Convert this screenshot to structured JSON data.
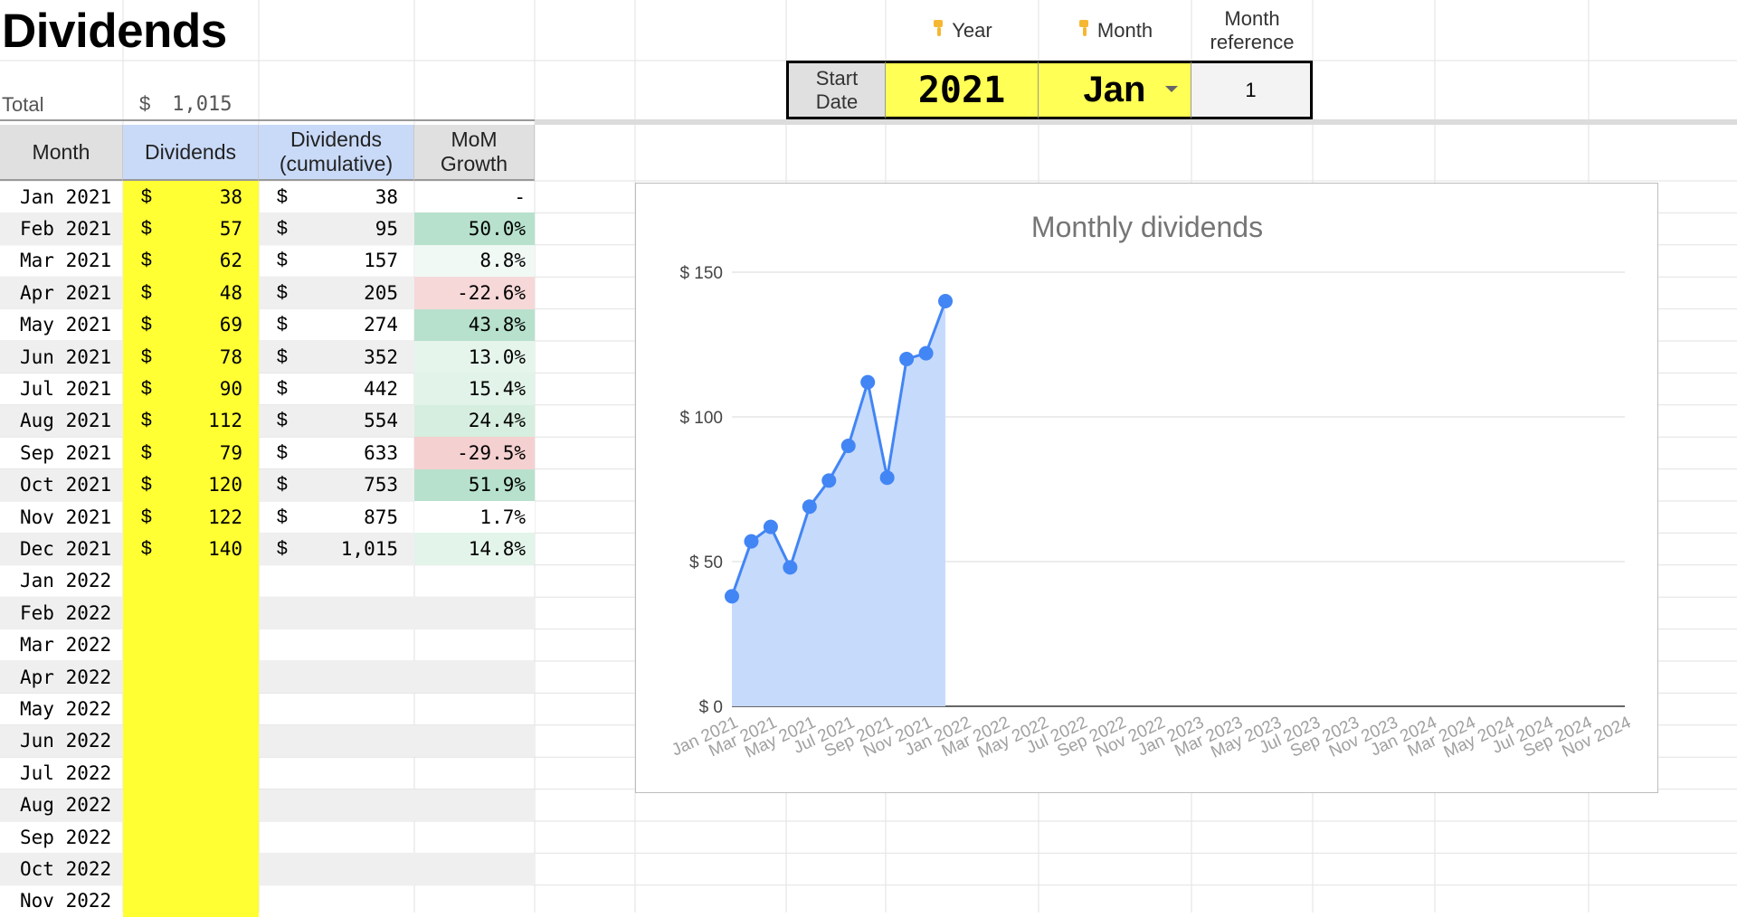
{
  "sheet": {
    "title": "Dividends",
    "total_label": "Total",
    "total_currency": "$",
    "total_value": "1,015"
  },
  "controls": {
    "year_header": "Year",
    "month_header": "Month",
    "month_ref_header_line1": "Month",
    "month_ref_header_line2": "reference",
    "start_label_line1": "Start",
    "start_label_line2": "Date",
    "year_value": "2021",
    "month_value": "Jan",
    "month_ref_value": "1",
    "pointer_icon": "pointing-down-hand",
    "highlight_color": "#ffff55"
  },
  "table": {
    "headers": {
      "month": "Month",
      "dividends": "Dividends",
      "cumulative_line1": "Dividends",
      "cumulative_line2": "(cumulative)",
      "mom_line1": "MoM",
      "mom_line2": "Growth"
    },
    "currency": "$",
    "rows": [
      {
        "month": "Jan 2021",
        "div": "38",
        "cum": "38",
        "mom": "-",
        "mom_color": "none"
      },
      {
        "month": "Feb 2021",
        "div": "57",
        "cum": "95",
        "mom": "50.0%",
        "mom_color": "#b7e1cd"
      },
      {
        "month": "Mar 2021",
        "div": "62",
        "cum": "157",
        "mom": "8.8%",
        "mom_color": "#f0f9f4"
      },
      {
        "month": "Apr 2021",
        "div": "48",
        "cum": "205",
        "mom": "-22.6%",
        "mom_color": "#f6d8d8"
      },
      {
        "month": "May 2021",
        "div": "69",
        "cum": "274",
        "mom": "43.8%",
        "mom_color": "#b7e1cd"
      },
      {
        "month": "Jun 2021",
        "div": "78",
        "cum": "352",
        "mom": "13.0%",
        "mom_color": "#e6f5ec"
      },
      {
        "month": "Jul 2021",
        "div": "90",
        "cum": "442",
        "mom": "15.4%",
        "mom_color": "#e2f3e9"
      },
      {
        "month": "Aug 2021",
        "div": "112",
        "cum": "554",
        "mom": "24.4%",
        "mom_color": "#d6eedf"
      },
      {
        "month": "Sep 2021",
        "div": "79",
        "cum": "633",
        "mom": "-29.5%",
        "mom_color": "#f5d0d0"
      },
      {
        "month": "Oct 2021",
        "div": "120",
        "cum": "753",
        "mom": "51.9%",
        "mom_color": "#b7e1cd"
      },
      {
        "month": "Nov 2021",
        "div": "122",
        "cum": "875",
        "mom": "1.7%",
        "mom_color": "#ffffff"
      },
      {
        "month": "Dec 2021",
        "div": "140",
        "cum": "1,015",
        "mom": "14.8%",
        "mom_color": "#e3f4ea"
      },
      {
        "month": "Jan 2022",
        "div": "",
        "cum": "",
        "mom": "",
        "mom_color": "none"
      },
      {
        "month": "Feb 2022",
        "div": "",
        "cum": "",
        "mom": "",
        "mom_color": "none"
      },
      {
        "month": "Mar 2022",
        "div": "",
        "cum": "",
        "mom": "",
        "mom_color": "none"
      },
      {
        "month": "Apr 2022",
        "div": "",
        "cum": "",
        "mom": "",
        "mom_color": "none"
      },
      {
        "month": "May 2022",
        "div": "",
        "cum": "",
        "mom": "",
        "mom_color": "none"
      },
      {
        "month": "Jun 2022",
        "div": "",
        "cum": "",
        "mom": "",
        "mom_color": "none"
      },
      {
        "month": "Jul 2022",
        "div": "",
        "cum": "",
        "mom": "",
        "mom_color": "none"
      },
      {
        "month": "Aug 2022",
        "div": "",
        "cum": "",
        "mom": "",
        "mom_color": "none"
      },
      {
        "month": "Sep 2022",
        "div": "",
        "cum": "",
        "mom": "",
        "mom_color": "none"
      },
      {
        "month": "Oct 2022",
        "div": "",
        "cum": "",
        "mom": "",
        "mom_color": "none"
      },
      {
        "month": "Nov 2022",
        "div": "",
        "cum": "",
        "mom": "",
        "mom_color": "none"
      }
    ]
  },
  "chart_data": {
    "type": "area",
    "title": "Monthly dividends",
    "xlabel": "",
    "ylabel": "",
    "x_tick_labels": [
      "Jan 2021",
      "Mar 2021",
      "May 2021",
      "Jul 2021",
      "Sep 2021",
      "Nov 2021",
      "Jan 2022",
      "Mar 2022",
      "May 2022",
      "Jul 2022",
      "Sep 2022",
      "Nov 2022",
      "Jan 2023",
      "Mar 2023",
      "May 2023",
      "Jul 2023",
      "Sep 2023",
      "Nov 2023",
      "Jan 2024",
      "Mar 2024",
      "May 2024",
      "Jul 2024",
      "Sep 2024",
      "Nov 2024"
    ],
    "y_tick_labels": [
      "$ 0",
      "$ 50",
      "$ 100",
      "$ 150"
    ],
    "y_ticks": [
      0,
      50,
      100,
      150
    ],
    "ylim": [
      0,
      150
    ],
    "x_range": [
      "Jan 2021",
      "Nov 2024"
    ],
    "grid": true,
    "legend": "none",
    "line_color": "#4285f4",
    "fill_color": "#c6dafc",
    "series": [
      {
        "x": [
          "Jan 2021",
          "Feb 2021",
          "Mar 2021",
          "Apr 2021",
          "May 2021",
          "Jun 2021",
          "Jul 2021",
          "Aug 2021",
          "Sep 2021",
          "Oct 2021",
          "Nov 2021",
          "Dec 2021"
        ],
        "values": [
          38,
          57,
          62,
          48,
          69,
          78,
          90,
          112,
          79,
          120,
          122,
          140
        ]
      }
    ]
  }
}
